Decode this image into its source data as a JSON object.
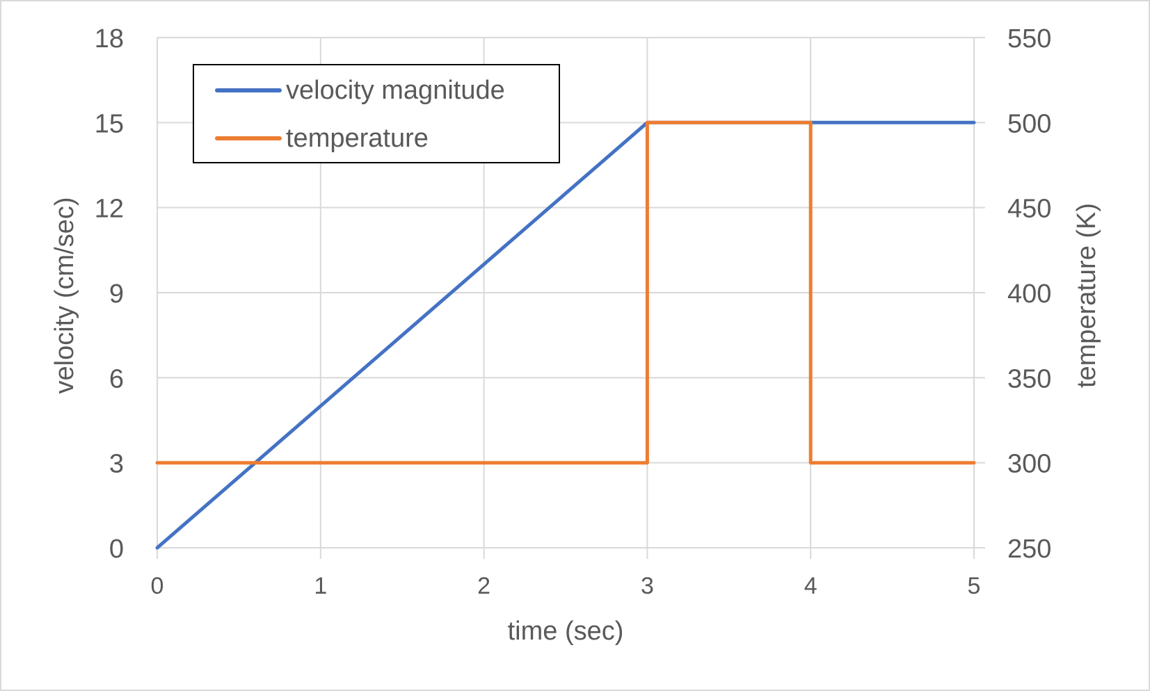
{
  "chart_data": {
    "type": "line",
    "title": "",
    "xlabel": "time (sec)",
    "ylabel": "velocity (cm/sec)",
    "y2label": "temperature (K)",
    "xlim": [
      0,
      5
    ],
    "ylim": [
      0,
      18
    ],
    "y2lim": [
      250,
      550
    ],
    "x_ticks": [
      0,
      1,
      2,
      3,
      4,
      5
    ],
    "y_ticks": [
      0,
      3,
      6,
      9,
      12,
      15,
      18
    ],
    "y2_ticks": [
      250,
      300,
      350,
      400,
      450,
      500,
      550
    ],
    "grid": true,
    "legend_position": "top-left",
    "series": [
      {
        "name": "velocity magnitude",
        "axis": "left",
        "color": "#4472C4",
        "x": [
          0,
          3,
          5
        ],
        "values": [
          0,
          15,
          15
        ]
      },
      {
        "name": "temperature",
        "axis": "right",
        "color": "#ED7D31",
        "x": [
          0,
          3,
          3,
          4,
          4,
          5
        ],
        "values": [
          300,
          300,
          500,
          500,
          300,
          300
        ]
      }
    ]
  }
}
